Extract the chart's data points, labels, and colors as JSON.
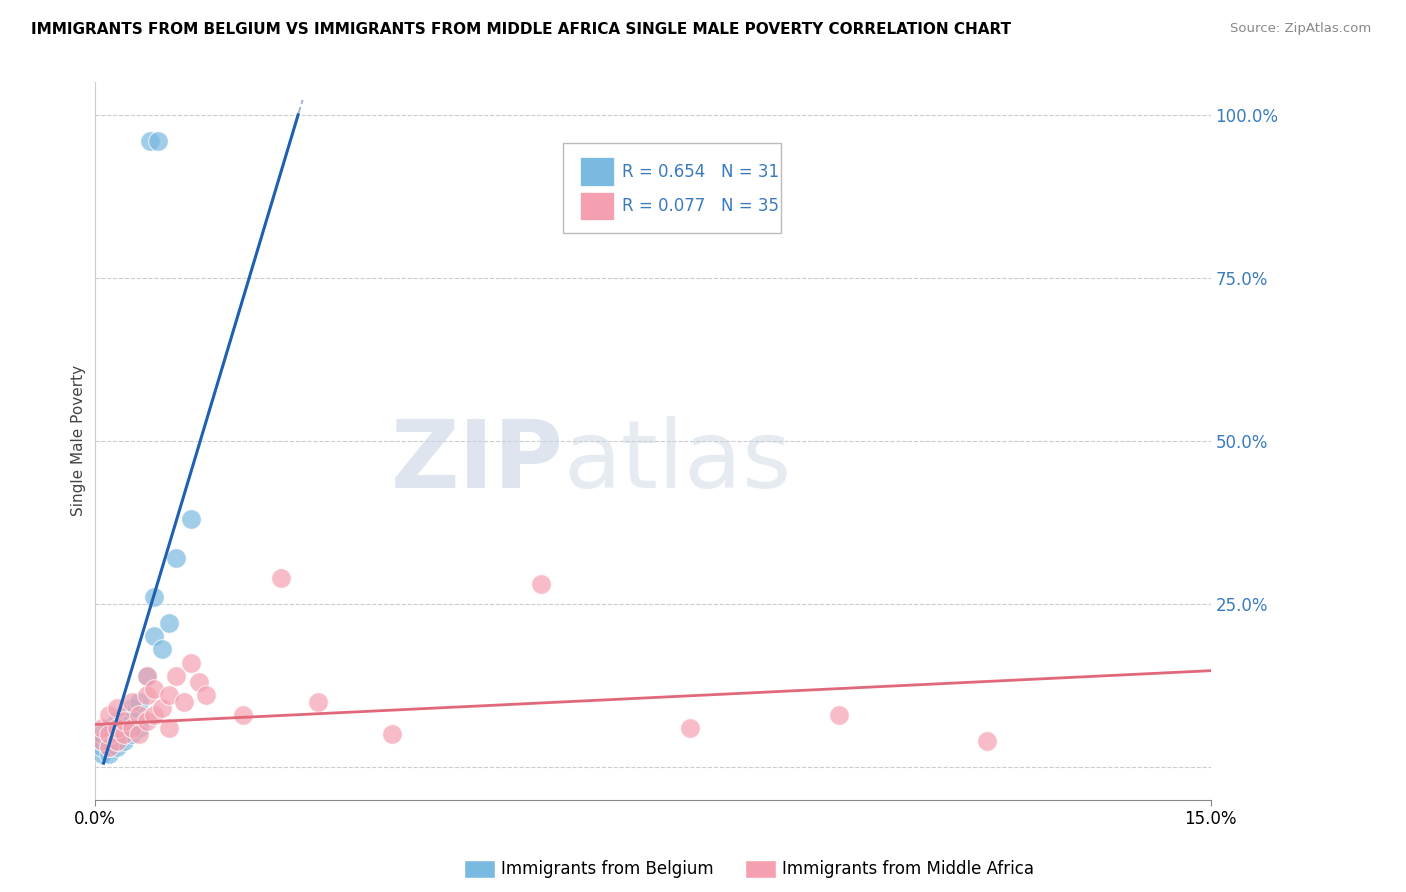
{
  "title": "IMMIGRANTS FROM BELGIUM VS IMMIGRANTS FROM MIDDLE AFRICA SINGLE MALE POVERTY CORRELATION CHART",
  "source": "Source: ZipAtlas.com",
  "ylabel": "Single Male Poverty",
  "right_yticklabels": [
    "",
    "25.0%",
    "50.0%",
    "75.0%",
    "100.0%"
  ],
  "right_ytick_vals": [
    0.0,
    0.25,
    0.5,
    0.75,
    1.0
  ],
  "legend_blue_r": "R = 0.654",
  "legend_blue_n": "N = 31",
  "legend_pink_r": "R = 0.077",
  "legend_pink_n": "N = 35",
  "legend_blue_label": "Immigrants from Belgium",
  "legend_pink_label": "Immigrants from Middle Africa",
  "blue_color": "#7ab9e0",
  "pink_color": "#f4a0b0",
  "trend_blue_color": "#2060b0",
  "trend_pink_color": "#e06878",
  "dashed_color": "#a8b8d0",
  "watermark_zip": "ZIP",
  "watermark_atlas": "atlas",
  "blue_x": [
    0.001,
    0.001,
    0.001,
    0.001,
    0.002,
    0.002,
    0.002,
    0.002,
    0.002,
    0.003,
    0.003,
    0.003,
    0.003,
    0.003,
    0.004,
    0.004,
    0.004,
    0.005,
    0.005,
    0.005,
    0.006,
    0.006,
    0.007,
    0.008,
    0.008,
    0.009,
    0.01,
    0.011,
    0.013,
    0.0075,
    0.0085
  ],
  "blue_y": [
    0.02,
    0.03,
    0.04,
    0.05,
    0.02,
    0.03,
    0.04,
    0.05,
    0.06,
    0.03,
    0.04,
    0.05,
    0.06,
    0.07,
    0.04,
    0.06,
    0.08,
    0.05,
    0.07,
    0.09,
    0.06,
    0.1,
    0.14,
    0.2,
    0.26,
    0.18,
    0.22,
    0.32,
    0.38,
    0.96,
    0.96
  ],
  "pink_x": [
    0.001,
    0.001,
    0.002,
    0.002,
    0.002,
    0.003,
    0.003,
    0.003,
    0.004,
    0.004,
    0.005,
    0.005,
    0.006,
    0.006,
    0.007,
    0.007,
    0.007,
    0.008,
    0.008,
    0.009,
    0.01,
    0.01,
    0.011,
    0.012,
    0.013,
    0.014,
    0.015,
    0.02,
    0.025,
    0.03,
    0.04,
    0.06,
    0.08,
    0.1,
    0.12
  ],
  "pink_y": [
    0.04,
    0.06,
    0.03,
    0.05,
    0.08,
    0.04,
    0.06,
    0.09,
    0.05,
    0.07,
    0.06,
    0.1,
    0.05,
    0.08,
    0.07,
    0.11,
    0.14,
    0.08,
    0.12,
    0.09,
    0.06,
    0.11,
    0.14,
    0.1,
    0.16,
    0.13,
    0.11,
    0.08,
    0.29,
    0.1,
    0.05,
    0.28,
    0.06,
    0.08,
    0.04
  ],
  "xmin": 0.0,
  "xmax": 0.15,
  "ymin": -0.05,
  "ymax": 1.05,
  "trend_blue_slope": 38.0,
  "trend_blue_intercept": -0.04,
  "trend_pink_slope": 0.55,
  "trend_pink_intercept": 0.065
}
